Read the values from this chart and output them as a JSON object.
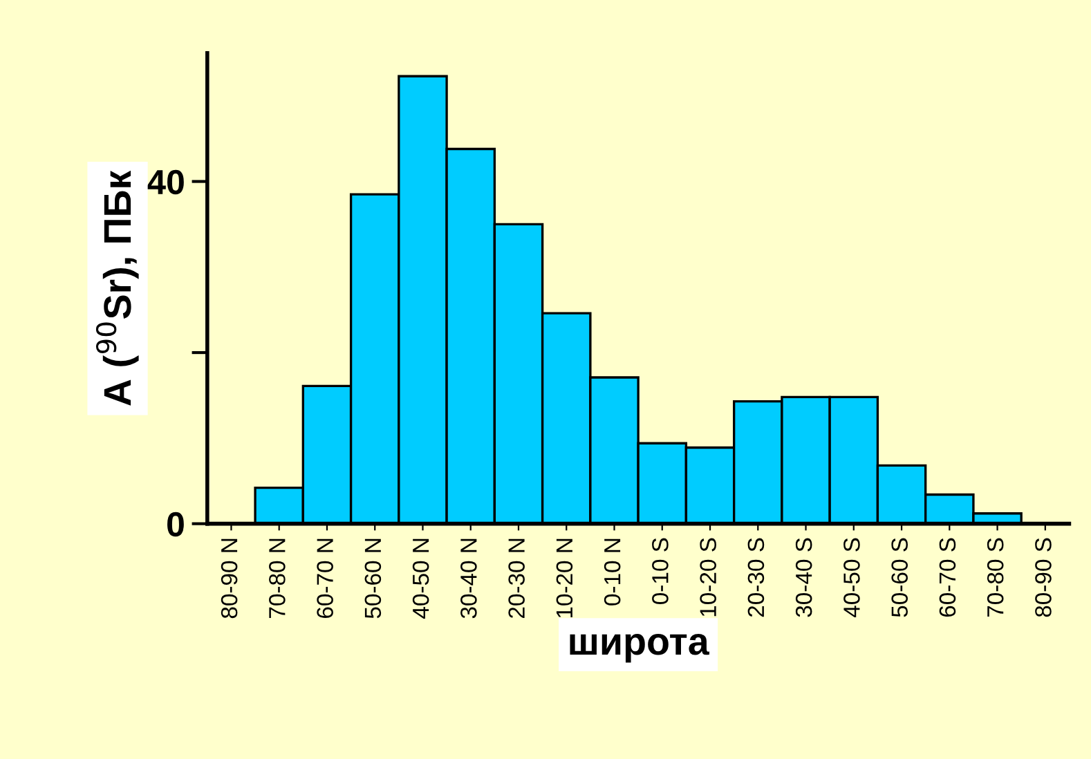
{
  "chart_data": {
    "type": "bar",
    "xlabel": "широта",
    "ylabel": "A ($^{90}$Sr), ПБк",
    "categories": [
      "80-90 N",
      "70-80 N",
      "60-70 N",
      "50-60 N",
      "40-50 N",
      "30-40 N",
      "20-30 N",
      "10-20 N",
      "0-10 N",
      "0-10 S",
      "10-20 S",
      "20-30 S",
      "30-40 S",
      "40-50 S",
      "50-60 S",
      "60-70 S",
      "70-80 S",
      "80-90 S"
    ],
    "values": [
      0,
      4.2,
      16.1,
      38.5,
      52.3,
      43.8,
      35.0,
      24.6,
      17.1,
      9.4,
      8.9,
      14.3,
      14.8,
      14.8,
      6.8,
      3.4,
      1.2,
      0
    ],
    "color": "#00ccff",
    "ylim": [
      0,
      55
    ],
    "yticks": [
      0,
      {
        "value": 20,
        "label": null
      },
      40
    ],
    "grid": false
  }
}
